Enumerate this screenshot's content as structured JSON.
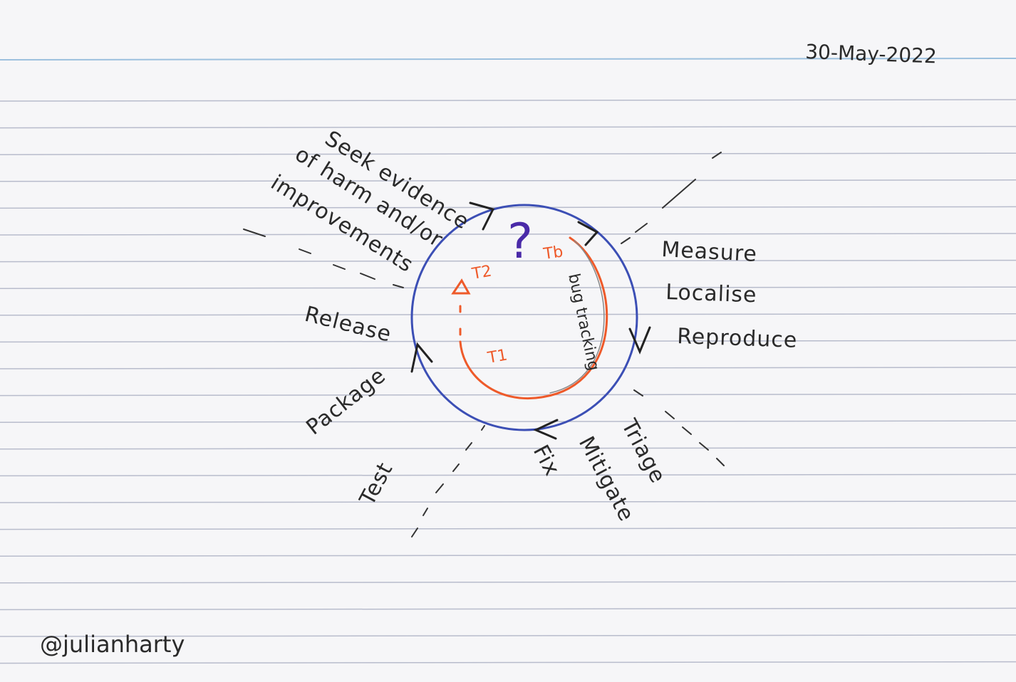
{
  "date": "30-May-2022",
  "signature": "@julianharty",
  "center_mark": "?",
  "labels": {
    "seek_line1": "Seek evidence",
    "seek_line2": "of harm and/or",
    "seek_line3": "improvements",
    "measure": "Measure",
    "localise": "Localise",
    "reproduce": "Reproduce",
    "triage": "Triage",
    "mitigate": "Mitigate",
    "fix": "Fix",
    "test": "Test",
    "package": "Package",
    "release": "Release"
  },
  "inner": {
    "tb": "Tb",
    "t2": "T2",
    "t1": "T1",
    "bug_tracking": "bug tracking"
  },
  "colors": {
    "paper": "#f6f6f8",
    "rule_line": "#b8bccc",
    "top_rule": "#9cc0de",
    "circle": "#3c4fb5",
    "inner": "#ee5a2a",
    "ink": "#2a2a2a",
    "question": "#4a2aa8"
  }
}
